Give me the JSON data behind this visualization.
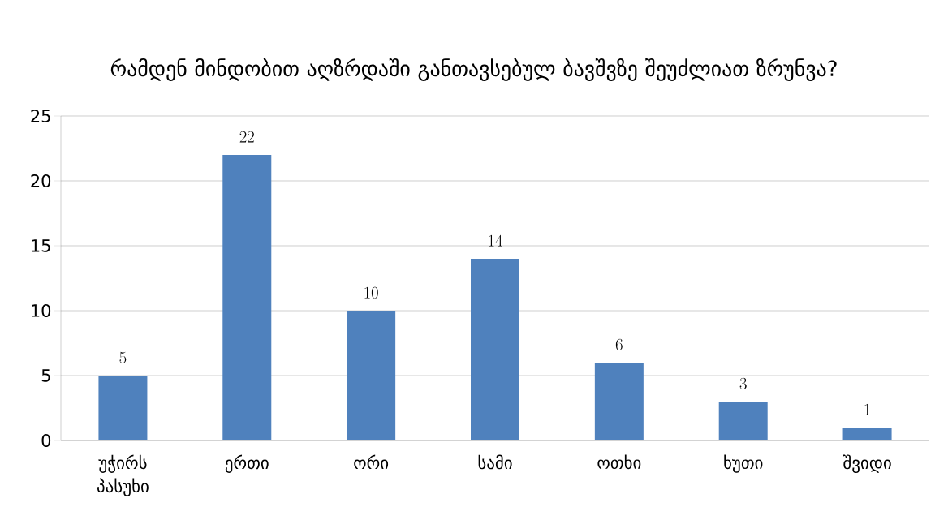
{
  "chart_data": {
    "type": "bar",
    "title": "რამდენ მინდობით აღზრდაში განთავსებულ ბავშვზე შეუძლიათ ზრუნვა?",
    "categories": [
      "უჭირს პასუხი",
      "ერთი",
      "ორი",
      "სამი",
      "ოთხი",
      "ხუთი",
      "შვიდი"
    ],
    "values": [
      5,
      22,
      10,
      14,
      6,
      3,
      1
    ],
    "color": "#4f81bd",
    "ylim": [
      0,
      25
    ],
    "yticks": [
      0,
      5,
      10,
      15,
      20,
      25
    ],
    "grid": "y",
    "data_labels": true
  }
}
